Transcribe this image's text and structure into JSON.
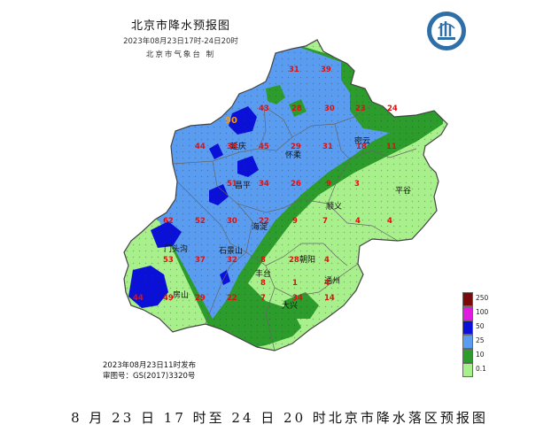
{
  "header": {
    "title": "北京市降水预报图",
    "period": "2023年08月23日17时-24日20时",
    "org": "北京市气象台 制"
  },
  "issue": {
    "issued": "2023年08月23日11时发布",
    "approval": "审图号：GS(2017)3320号"
  },
  "caption": "8 月 23 日 17 时至 24 日 20 时北京市降水落区预报图",
  "legend": {
    "items": [
      {
        "label": "250",
        "color": "#7a0a0a"
      },
      {
        "label": "100",
        "color": "#e01be0"
      },
      {
        "label": "50",
        "color": "#0a10d8"
      },
      {
        "label": "25",
        "color": "#5a9cf0"
      },
      {
        "label": "10",
        "color": "#2c9c2c"
      },
      {
        "label": "0.1",
        "color": "#a8f08c"
      }
    ]
  },
  "districts": [
    {
      "name": "延庆"
    },
    {
      "name": "怀柔"
    },
    {
      "name": "密云"
    },
    {
      "name": "平谷"
    },
    {
      "name": "昌平"
    },
    {
      "name": "顺义"
    },
    {
      "name": "海淀"
    },
    {
      "name": "门头沟"
    },
    {
      "name": "石景山"
    },
    {
      "name": "朝阳"
    },
    {
      "name": "房山"
    },
    {
      "name": "丰台"
    },
    {
      "name": "通州"
    },
    {
      "name": "大兴"
    }
  ],
  "values": [
    {
      "v": "31"
    },
    {
      "v": "39"
    },
    {
      "v": "43"
    },
    {
      "v": "28"
    },
    {
      "v": "30"
    },
    {
      "v": "23"
    },
    {
      "v": "24"
    },
    {
      "v": "90"
    },
    {
      "v": "44"
    },
    {
      "v": "38"
    },
    {
      "v": "45"
    },
    {
      "v": "29"
    },
    {
      "v": "31"
    },
    {
      "v": "18"
    },
    {
      "v": "11"
    },
    {
      "v": "51"
    },
    {
      "v": "34"
    },
    {
      "v": "26"
    },
    {
      "v": "9"
    },
    {
      "v": "3"
    },
    {
      "v": "62"
    },
    {
      "v": "52"
    },
    {
      "v": "30"
    },
    {
      "v": "22"
    },
    {
      "v": "9"
    },
    {
      "v": "7"
    },
    {
      "v": "4"
    },
    {
      "v": "4"
    },
    {
      "v": "53"
    },
    {
      "v": "37"
    },
    {
      "v": "32"
    },
    {
      "v": "8"
    },
    {
      "v": "28"
    },
    {
      "v": "4"
    },
    {
      "v": "8"
    },
    {
      "v": "1"
    },
    {
      "v": "4"
    },
    {
      "v": "44"
    },
    {
      "v": "49"
    },
    {
      "v": "29"
    },
    {
      "v": "22"
    },
    {
      "v": "7"
    },
    {
      "v": "34"
    },
    {
      "v": "14"
    }
  ],
  "colors": {
    "red_label": "#e01010",
    "orange_label": "#ff9900",
    "border": "#666666"
  }
}
